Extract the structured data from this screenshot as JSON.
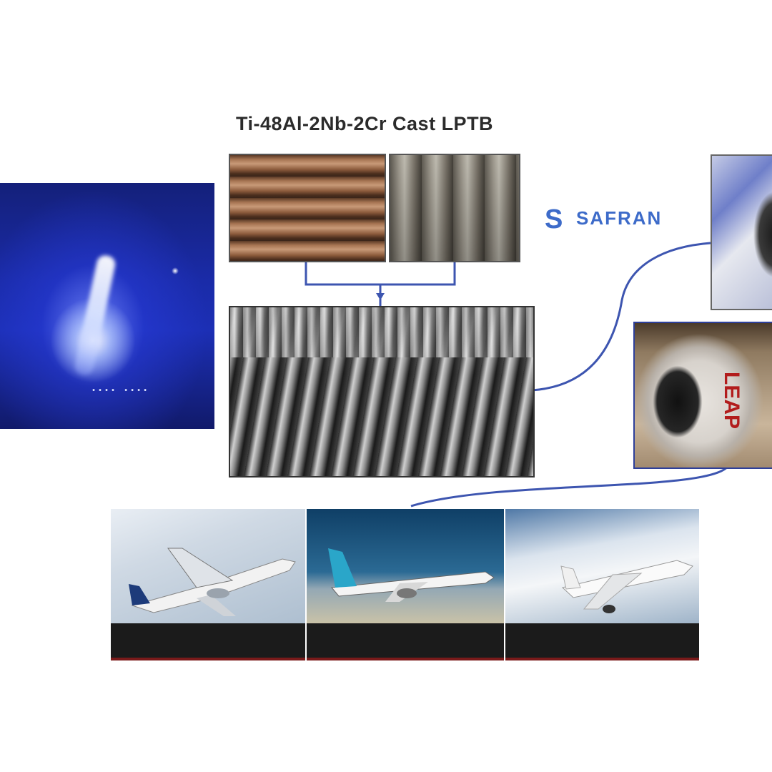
{
  "title": "Ti-48Al-2Nb-2Cr Cast LPTB",
  "logo": {
    "mark": "S",
    "name": "SAFRAN",
    "color": "#3d6bc9"
  },
  "engine_label": "LEAP",
  "plasma_caption": "∙∙∙∙ ∙∙∙∙",
  "aircraft": [
    {
      "line1": "",
      "line2": ""
    },
    {
      "line1": "",
      "line2": ""
    },
    {
      "line1": "",
      "line2": ""
    }
  ],
  "colors": {
    "connector": "#3d55b0",
    "caption_bar": "#7a1a1a"
  }
}
